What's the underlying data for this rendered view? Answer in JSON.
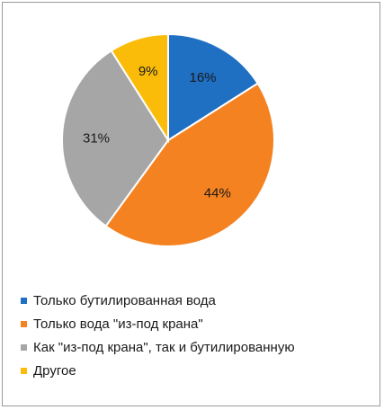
{
  "chart_data": {
    "type": "pie",
    "title": "",
    "start_angle_deg": 0,
    "direction": "clockwise",
    "legend_position": "bottom",
    "slices": [
      {
        "label": "Только бутилированная вода",
        "value": 16,
        "value_label": "16%",
        "color": "#1f6fc2"
      },
      {
        "label": "Только вода \"из-под крана\"",
        "value": 44,
        "value_label": "44%",
        "color": "#f58220"
      },
      {
        "label": "Как \"из-под крана\", так и бутилированную",
        "value": 31,
        "value_label": "31%",
        "color": "#a6a6a6"
      },
      {
        "label": "Другое",
        "value": 9,
        "value_label": "9%",
        "color": "#fbbc09"
      }
    ]
  }
}
